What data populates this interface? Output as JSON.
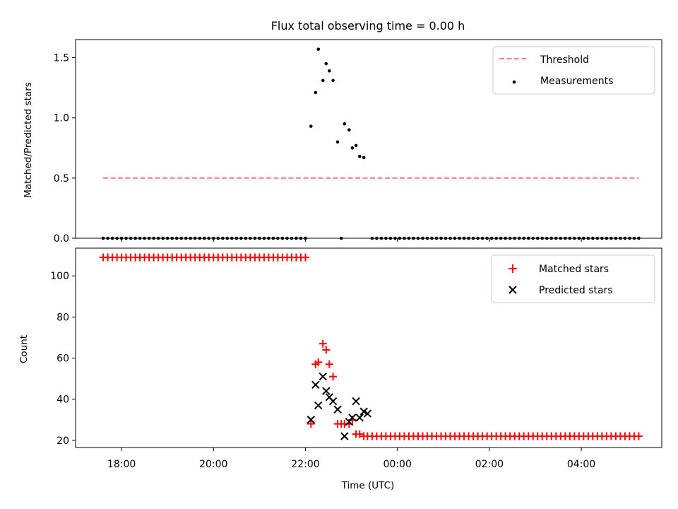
{
  "chart_data": [
    {
      "type": "scatter",
      "title": "Flux total observing time = 0.00 h",
      "xlabel": "",
      "ylabel": "Matched/Predicted stars",
      "xlim": [
        17.0,
        29.75
      ],
      "ylim": [
        0,
        1.65
      ],
      "yticks": [
        0.0,
        0.5,
        1.0,
        1.5
      ],
      "ytick_labels": [
        "0.0",
        "0.5",
        "1.0",
        "1.5"
      ],
      "legend_position": "top-right",
      "threshold": {
        "name": "Threshold",
        "value": 0.5,
        "x": [
          17.6,
          29.25
        ],
        "color": "#ff7f7f"
      },
      "series": [
        {
          "name": "Measurements",
          "color": "#000000",
          "marker": "dot",
          "start": 17.6,
          "step": 0.1,
          "count": 45,
          "value": 0,
          "points": [
            [
              22.12,
              0.93
            ],
            [
              22.22,
              1.21
            ],
            [
              22.28,
              1.57
            ],
            [
              22.38,
              1.31
            ],
            [
              22.45,
              1.45
            ],
            [
              22.52,
              1.39
            ],
            [
              22.6,
              1.31
            ],
            [
              22.7,
              0.8
            ],
            [
              22.78,
              0.0
            ],
            [
              22.85,
              0.95
            ],
            [
              22.95,
              0.9
            ],
            [
              23.02,
              0.75
            ],
            [
              23.1,
              0.77
            ],
            [
              23.18,
              0.68
            ],
            [
              23.27,
              0.67
            ]
          ],
          "tail_start": 23.45,
          "tail_step": 0.1,
          "tail_count": 59,
          "tail_value": 0
        }
      ]
    },
    {
      "type": "scatter",
      "title": "",
      "xlabel": "Time (UTC)",
      "ylabel": "Count",
      "xlim": [
        17.0,
        29.75
      ],
      "ylim": [
        16.5,
        113.5
      ],
      "yticks": [
        20,
        40,
        60,
        80,
        100
      ],
      "ytick_labels": [
        "20",
        "40",
        "60",
        "80",
        "100"
      ],
      "xticks": [
        18,
        20,
        22,
        24,
        26,
        28
      ],
      "xtick_labels": [
        "18:00",
        "20:00",
        "22:00",
        "00:00",
        "02:00",
        "04:00"
      ],
      "legend_position": "top-right",
      "series": [
        {
          "name": "Matched stars",
          "color": "#ff0000",
          "marker": "plus",
          "start": 17.6,
          "step": 0.1,
          "count": 45,
          "value": 109,
          "points": [
            [
              22.12,
              28
            ],
            [
              22.22,
              57
            ],
            [
              22.28,
              58
            ],
            [
              22.38,
              67
            ],
            [
              22.45,
              64
            ],
            [
              22.52,
              57
            ],
            [
              22.6,
              51
            ],
            [
              22.7,
              28
            ],
            [
              22.78,
              28
            ],
            [
              22.85,
              28
            ],
            [
              22.95,
              28
            ],
            [
              23.02,
              30
            ],
            [
              23.1,
              23
            ],
            [
              23.18,
              23
            ],
            [
              23.27,
              22
            ]
          ],
          "tail_start": 23.35,
          "tail_step": 0.1,
          "tail_count": 60,
          "tail_value": 22
        },
        {
          "name": "Predicted stars",
          "color": "#000000",
          "marker": "x",
          "points": [
            [
              22.12,
              30
            ],
            [
              22.22,
              47
            ],
            [
              22.28,
              37
            ],
            [
              22.38,
              51
            ],
            [
              22.45,
              44
            ],
            [
              22.52,
              41
            ],
            [
              22.6,
              39
            ],
            [
              22.7,
              35
            ],
            [
              22.85,
              22
            ],
            [
              22.95,
              29
            ],
            [
              23.02,
              31
            ],
            [
              23.1,
              39
            ],
            [
              23.18,
              31
            ],
            [
              23.27,
              34
            ],
            [
              23.35,
              33
            ]
          ]
        }
      ]
    }
  ]
}
